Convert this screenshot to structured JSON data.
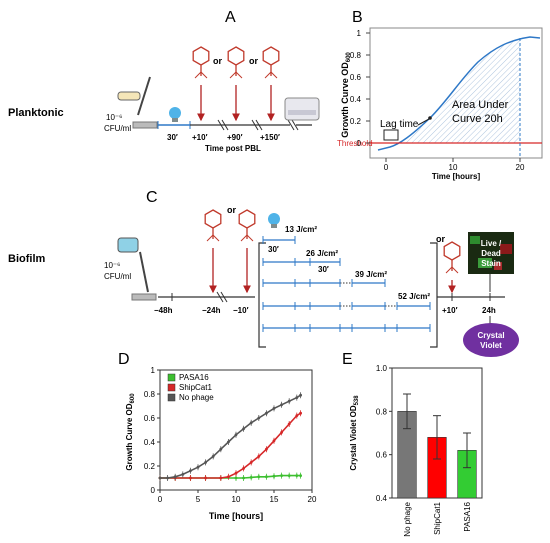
{
  "panel_labels": {
    "a": "A",
    "b": "B",
    "c": "C",
    "d": "D",
    "e": "E"
  },
  "row_labels": {
    "planktonic": "Planktonic",
    "biofilm": "Biofilm"
  },
  "panel_a": {
    "inoculum": "10⁻⁶",
    "cfu": "CFU/ml",
    "or_words": [
      "or",
      "or"
    ],
    "times": [
      "30′",
      "+10′",
      "+90′",
      "+150′"
    ],
    "axis_label": "Time post PBL"
  },
  "panel_b": {
    "ylabel": "Growth Curve OD",
    "ylabel_sub": "600",
    "xlabel": "Time [hours]",
    "yticks": [
      "0",
      "0.2",
      "0.4",
      "0.6",
      "0.8",
      "1"
    ],
    "xticks": [
      "0",
      "10",
      "20"
    ],
    "lag_label": "Lag time",
    "auc_label_1": "Area Under",
    "auc_label_2": "Curve 20h",
    "threshold_label": "Threshold",
    "colors": {
      "curve": "#2e78c7",
      "threshold": "#d62728"
    }
  },
  "panel_c": {
    "inoculum": "10⁻⁶",
    "cfu": "CFU/ml",
    "or_words": [
      "or",
      "or"
    ],
    "times": [
      "−48h",
      "−24h",
      "−10′",
      "+10′",
      "24h"
    ],
    "doses": [
      "13 J/cm²",
      "26 J/cm²",
      "39 J/cm²",
      "52 J/cm²"
    ],
    "intervals": [
      "30′",
      "30′"
    ],
    "stain_1": "Live /",
    "stain_2": "Dead",
    "stain_3": "Stain",
    "crystal_1": "Crystal",
    "crystal_2": "Violet"
  },
  "chart_data": [
    {
      "type": "line",
      "panel": "D",
      "ylabel": "Growth Curve OD",
      "ylabel_sub": "600",
      "xlabel": "Time [hours]",
      "xlim": [
        0,
        20
      ],
      "ylim": [
        0,
        1
      ],
      "xticks": [
        "0",
        "5",
        "10",
        "15",
        "20"
      ],
      "yticks": [
        "0",
        "0.2",
        "0.4",
        "0.6",
        "0.8",
        "1"
      ],
      "legend_position": "top-left",
      "series": [
        {
          "name": "PASA16",
          "color": "#3cbf2f",
          "x": [
            0,
            2,
            4,
            6,
            8,
            10,
            11,
            12,
            13,
            14,
            15,
            16,
            17,
            18,
            18.5
          ],
          "y": [
            0.1,
            0.1,
            0.1,
            0.1,
            0.1,
            0.1,
            0.1,
            0.105,
            0.11,
            0.11,
            0.115,
            0.12,
            0.12,
            0.12,
            0.12
          ]
        },
        {
          "name": "ShipCat1",
          "color": "#d62728",
          "x": [
            0,
            2,
            4,
            6,
            8,
            9,
            10,
            11,
            12,
            13,
            14,
            15,
            16,
            17,
            18,
            18.5
          ],
          "y": [
            0.1,
            0.1,
            0.1,
            0.1,
            0.1,
            0.11,
            0.14,
            0.18,
            0.23,
            0.28,
            0.34,
            0.41,
            0.48,
            0.55,
            0.62,
            0.64
          ]
        },
        {
          "name": "No phage",
          "color": "#555555",
          "x": [
            0,
            1,
            2,
            3,
            4,
            5,
            6,
            7,
            8,
            9,
            10,
            11,
            12,
            13,
            14,
            15,
            16,
            17,
            18,
            18.5
          ],
          "y": [
            0.1,
            0.1,
            0.11,
            0.13,
            0.16,
            0.19,
            0.23,
            0.28,
            0.34,
            0.4,
            0.46,
            0.51,
            0.56,
            0.6,
            0.64,
            0.68,
            0.71,
            0.74,
            0.77,
            0.79
          ]
        }
      ]
    },
    {
      "type": "bar",
      "panel": "E",
      "ylabel": "Crystal Violet OD",
      "ylabel_sub": "538",
      "categories": [
        "No phage",
        "ShipCat1",
        "PASA16"
      ],
      "values": [
        0.8,
        0.68,
        0.62
      ],
      "errors": [
        0.08,
        0.1,
        0.08
      ],
      "colors": [
        "#777777",
        "#ff0000",
        "#33cc33"
      ],
      "ylim": [
        0.4,
        1.0
      ],
      "yticks": [
        "0.4",
        "0.6",
        "0.8",
        "1.0"
      ]
    }
  ]
}
